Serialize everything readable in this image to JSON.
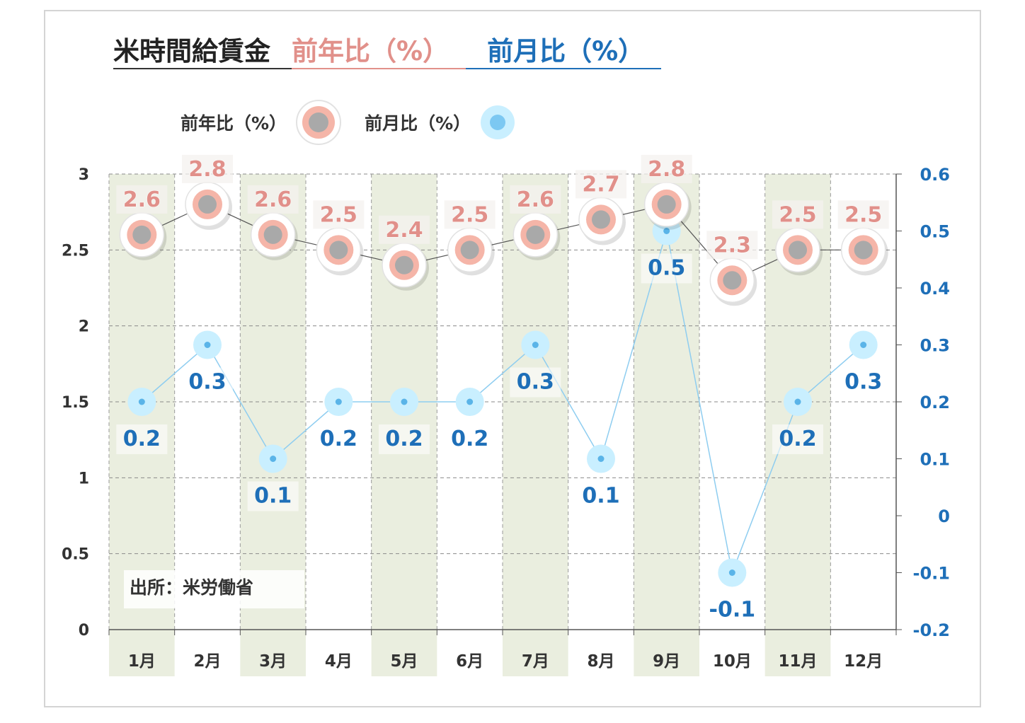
{
  "title": {
    "main": "米時間給賃金",
    "series_yoy": "前年比（%）",
    "series_mom": "前月比（%）"
  },
  "legend": [
    {
      "label": "前年比（%）"
    },
    {
      "label": "前月比（%）"
    }
  ],
  "source_note": "出所：米労働省",
  "colors": {
    "yoy_text": "#e1908a",
    "yoy_ring": "#f5b5a8",
    "yoy_marker": "#a9a9a9",
    "yoy_line": "#555555",
    "mom_text": "#1e6fb8",
    "mom_marker": "#c9efff",
    "mom_line": "#8ecdf0",
    "band": "#eaeedf"
  },
  "chart_data": {
    "type": "line",
    "categories": [
      "1月",
      "2月",
      "3月",
      "4月",
      "5月",
      "6月",
      "7月",
      "8月",
      "9月",
      "10月",
      "11月",
      "12月"
    ],
    "series": [
      {
        "name": "前年比（%）",
        "axis": "left",
        "values": [
          2.6,
          2.8,
          2.6,
          2.5,
          2.4,
          2.5,
          2.6,
          2.7,
          2.8,
          2.3,
          2.5,
          2.5
        ]
      },
      {
        "name": "前月比（%）",
        "axis": "right",
        "values": [
          0.2,
          0.3,
          0.1,
          0.2,
          0.2,
          0.2,
          0.3,
          0.1,
          0.5,
          -0.1,
          0.2,
          0.3
        ]
      }
    ],
    "y_left": {
      "ylim": [
        0,
        3
      ],
      "ticks": [
        "0",
        "0.5",
        "1",
        "1.5",
        "2",
        "2.5",
        "3"
      ]
    },
    "y_right": {
      "ylim": [
        -0.2,
        0.6
      ],
      "ticks": [
        "-0.2",
        "-0.1",
        "0",
        "0.1",
        "0.2",
        "0.3",
        "0.4",
        "0.5",
        "0.6"
      ]
    },
    "grid": true,
    "shaded_categories": [
      "1月",
      "3月",
      "5月",
      "7月",
      "9月",
      "11月"
    ],
    "legend_position": "top-left",
    "data_labels": true
  }
}
